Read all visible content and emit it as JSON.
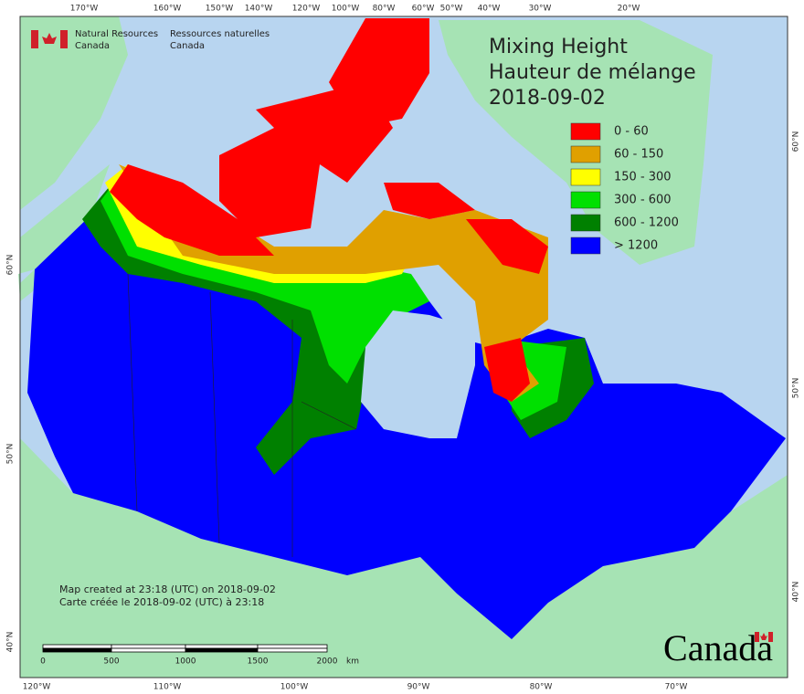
{
  "agency": {
    "en": [
      "Natural Resources",
      "Canada"
    ],
    "fr": [
      "Ressources naturelles",
      "Canada"
    ]
  },
  "title": [
    "Mixing Height",
    "Hauteur de mélange",
    "2018-09-02"
  ],
  "legend": [
    {
      "label": "0 - 60",
      "color": "#ff0000"
    },
    {
      "label": "60 - 150",
      "color": "#e0a000"
    },
    {
      "label": "150 - 300",
      "color": "#ffff00"
    },
    {
      "label": "300 - 600",
      "color": "#00e000"
    },
    {
      "label": "600 - 1200",
      "color": "#008000"
    },
    {
      "label": "> 1200",
      "color": "#0000ff"
    }
  ],
  "credits": [
    "Map created at 23:18 (UTC) on 2018-09-02",
    "Carte créée le 2018-09-02 (UTC) à 23:18"
  ],
  "scale_bar": {
    "labels": [
      "0",
      "500",
      "1000",
      "1500",
      "2000"
    ],
    "unit": "km"
  },
  "wordmark": "Canada",
  "graticule": {
    "top": [
      "170°W",
      "160°W",
      "150°W",
      "140°W",
      "120°W",
      "100°W",
      "80°W",
      "60°W",
      "50°W",
      "40°W",
      "30°W",
      "20°W"
    ],
    "bottom": [
      "120°W",
      "110°W",
      "100°W",
      "90°W",
      "80°W",
      "70°W"
    ],
    "left": [
      "60°N",
      "50°N",
      "40°N"
    ],
    "right": [
      "60°N",
      "50°N",
      "40°N"
    ]
  }
}
